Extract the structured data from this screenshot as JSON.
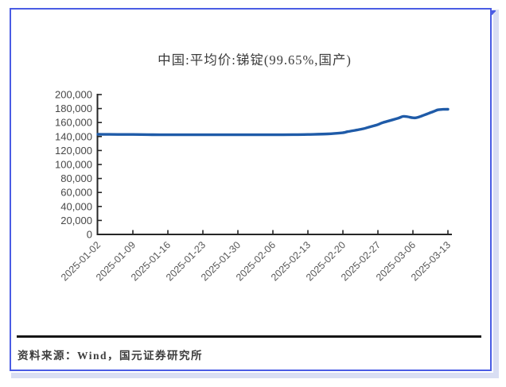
{
  "frame": {
    "border_color": "#4a5ce4",
    "selection_highlight_color": "#d9def3"
  },
  "chart_data": {
    "type": "line",
    "title": "中国:平均价:锑锭(99.65%,国产)",
    "xlabel": "",
    "ylabel": "",
    "ylim": [
      0,
      200000
    ],
    "y_tick_step": 20000,
    "y_tick_values": [
      0,
      20000,
      40000,
      60000,
      80000,
      100000,
      120000,
      140000,
      160000,
      180000,
      200000
    ],
    "x_tick_labels": [
      "2025-01-02",
      "2025-01-09",
      "2025-01-16",
      "2025-01-23",
      "2025-01-30",
      "2025-02-06",
      "2025-02-13",
      "2025-02-20",
      "2025-02-27",
      "2025-03-06",
      "2025-03-13"
    ],
    "x_range": [
      "2025-01-02",
      "2025-03-13"
    ],
    "grid": false,
    "legend_position": "none",
    "line_color": "#1f5ba8",
    "axis_color": "#262626",
    "series": [
      {
        "name": "中国:平均价:锑锭(99.65%,国产)",
        "color": "#1f5ba8",
        "points": [
          [
            "2025-01-02",
            143200
          ],
          [
            "2025-01-06",
            143000
          ],
          [
            "2025-01-09",
            143000
          ],
          [
            "2025-01-13",
            142600
          ],
          [
            "2025-01-16",
            142500
          ],
          [
            "2025-01-20",
            142500
          ],
          [
            "2025-01-23",
            142500
          ],
          [
            "2025-01-27",
            142500
          ],
          [
            "2025-01-30",
            142500
          ],
          [
            "2025-02-03",
            142500
          ],
          [
            "2025-02-06",
            142500
          ],
          [
            "2025-02-10",
            142700
          ],
          [
            "2025-02-13",
            143000
          ],
          [
            "2025-02-17",
            143800
          ],
          [
            "2025-02-20",
            145500
          ],
          [
            "2025-02-21",
            147000
          ],
          [
            "2025-02-24",
            151000
          ],
          [
            "2025-02-25",
            153000
          ],
          [
            "2025-02-26",
            155000
          ],
          [
            "2025-02-27",
            157000
          ],
          [
            "2025-02-28",
            160000
          ],
          [
            "2025-03-03",
            166000
          ],
          [
            "2025-03-04",
            168800
          ],
          [
            "2025-03-05",
            168200
          ],
          [
            "2025-03-06",
            166800
          ],
          [
            "2025-03-07",
            167500
          ],
          [
            "2025-03-10",
            175500
          ],
          [
            "2025-03-11",
            178200
          ],
          [
            "2025-03-12",
            178900
          ],
          [
            "2025-03-13",
            179000
          ]
        ]
      }
    ]
  },
  "footer": {
    "source_label": "资料来源：Wind，国元证券研究所"
  }
}
